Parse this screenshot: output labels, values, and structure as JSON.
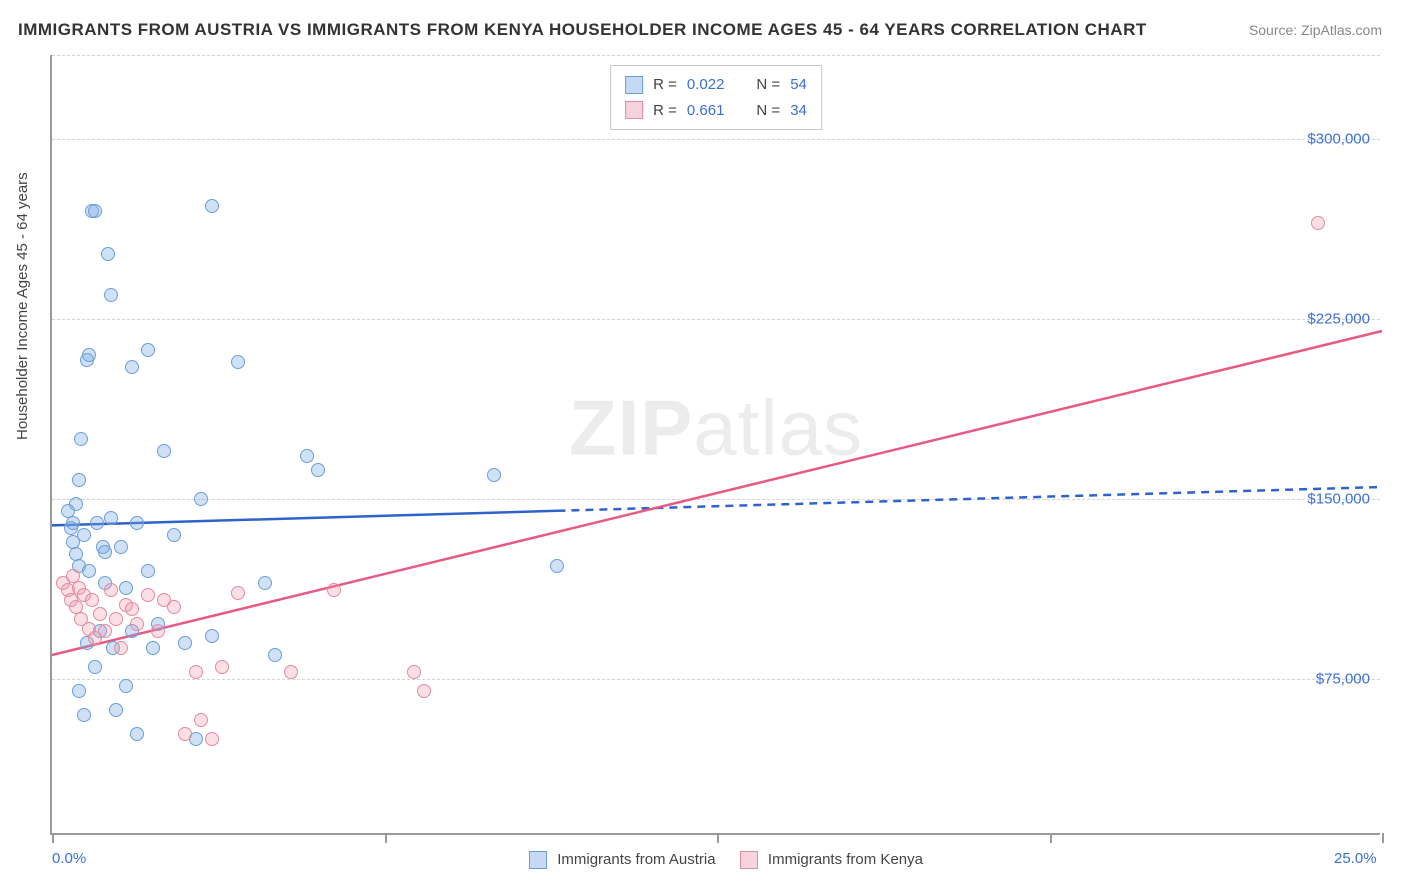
{
  "title": "IMMIGRANTS FROM AUSTRIA VS IMMIGRANTS FROM KENYA HOUSEHOLDER INCOME AGES 45 - 64 YEARS CORRELATION CHART",
  "source_label": "Source: ZipAtlas.com",
  "ylabel": "Householder Income Ages 45 - 64 years",
  "watermark": "ZIPatlas",
  "chart": {
    "type": "scatter",
    "xlim": [
      0,
      25
    ],
    "ylim": [
      10000,
      335000
    ],
    "x_unit": "%",
    "y_unit": "$",
    "xtick_labels": [
      "0.0%",
      "25.0%"
    ],
    "xtick_pos": [
      0,
      25
    ],
    "ytick_labels": [
      "$75,000",
      "$150,000",
      "$225,000",
      "$300,000"
    ],
    "ytick_pos": [
      75000,
      150000,
      225000,
      300000
    ],
    "grid_y_pos": [
      75000,
      150000,
      225000,
      300000,
      335000
    ],
    "xtick_mark_pos": [
      0,
      6.25,
      12.5,
      18.75,
      25
    ],
    "background_color": "#ffffff",
    "grid_color": "#d4d4d4",
    "axis_color": "#9a9a9a",
    "label_color": "#3b6fd6",
    "series": [
      {
        "name": "Immigrants from Austria",
        "color_fill": "rgba(120,170,230,0.35)",
        "color_stroke": "#6a9ed8",
        "class": "blue",
        "swatch_class": "blue-sw",
        "legend_swatch_bg": "#c5daf2",
        "R": "0.022",
        "N": "54",
        "trend": {
          "x1": 0,
          "y1": 139000,
          "x2": 25,
          "y2": 155000,
          "solid_until_x": 9.5,
          "stroke": "#2f63c9",
          "width": 2.5
        },
        "points": [
          [
            0.3,
            145000
          ],
          [
            0.35,
            138000
          ],
          [
            0.4,
            132000
          ],
          [
            0.4,
            140000
          ],
          [
            0.45,
            127000
          ],
          [
            0.45,
            148000
          ],
          [
            0.5,
            122000
          ],
          [
            0.5,
            158000
          ],
          [
            0.5,
            70000
          ],
          [
            0.55,
            175000
          ],
          [
            0.6,
            60000
          ],
          [
            0.6,
            135000
          ],
          [
            0.65,
            208000
          ],
          [
            0.65,
            90000
          ],
          [
            0.7,
            210000
          ],
          [
            0.7,
            120000
          ],
          [
            0.75,
            270000
          ],
          [
            0.8,
            270000
          ],
          [
            0.8,
            80000
          ],
          [
            0.85,
            140000
          ],
          [
            0.9,
            95000
          ],
          [
            0.95,
            130000
          ],
          [
            1.0,
            128000
          ],
          [
            1.0,
            115000
          ],
          [
            1.05,
            252000
          ],
          [
            1.1,
            235000
          ],
          [
            1.1,
            142000
          ],
          [
            1.15,
            88000
          ],
          [
            1.2,
            62000
          ],
          [
            1.3,
            130000
          ],
          [
            1.4,
            113000
          ],
          [
            1.4,
            72000
          ],
          [
            1.5,
            205000
          ],
          [
            1.5,
            95000
          ],
          [
            1.6,
            140000
          ],
          [
            1.6,
            52000
          ],
          [
            1.8,
            120000
          ],
          [
            1.8,
            212000
          ],
          [
            1.9,
            88000
          ],
          [
            2.0,
            98000
          ],
          [
            2.1,
            170000
          ],
          [
            2.3,
            135000
          ],
          [
            2.5,
            90000
          ],
          [
            2.7,
            50000
          ],
          [
            2.8,
            150000
          ],
          [
            3.0,
            93000
          ],
          [
            3.0,
            272000
          ],
          [
            3.5,
            207000
          ],
          [
            4.0,
            115000
          ],
          [
            4.2,
            85000
          ],
          [
            4.8,
            168000
          ],
          [
            5.0,
            162000
          ],
          [
            8.3,
            160000
          ],
          [
            9.5,
            122000
          ]
        ]
      },
      {
        "name": "Immigrants from Kenya",
        "color_fill": "rgba(240,150,170,0.30)",
        "color_stroke": "#e38aa0",
        "class": "pink",
        "swatch_class": "pink-sw",
        "legend_swatch_bg": "#f7d4dd",
        "R": "0.661",
        "N": "34",
        "trend": {
          "x1": 0,
          "y1": 85000,
          "x2": 25,
          "y2": 220000,
          "solid_until_x": 25,
          "stroke": "#e75a82",
          "width": 2.5
        },
        "points": [
          [
            0.2,
            115000
          ],
          [
            0.3,
            112000
          ],
          [
            0.35,
            108000
          ],
          [
            0.4,
            118000
          ],
          [
            0.45,
            105000
          ],
          [
            0.5,
            113000
          ],
          [
            0.55,
            100000
          ],
          [
            0.6,
            110000
          ],
          [
            0.7,
            96000
          ],
          [
            0.75,
            108000
          ],
          [
            0.8,
            92000
          ],
          [
            0.9,
            102000
          ],
          [
            1.0,
            95000
          ],
          [
            1.1,
            112000
          ],
          [
            1.2,
            100000
          ],
          [
            1.3,
            88000
          ],
          [
            1.4,
            106000
          ],
          [
            1.5,
            104000
          ],
          [
            1.6,
            98000
          ],
          [
            1.8,
            110000
          ],
          [
            2.0,
            95000
          ],
          [
            2.1,
            108000
          ],
          [
            2.3,
            105000
          ],
          [
            2.5,
            52000
          ],
          [
            2.7,
            78000
          ],
          [
            2.8,
            58000
          ],
          [
            3.0,
            50000
          ],
          [
            3.2,
            80000
          ],
          [
            3.5,
            111000
          ],
          [
            4.5,
            78000
          ],
          [
            5.3,
            112000
          ],
          [
            6.8,
            78000
          ],
          [
            7.0,
            70000
          ],
          [
            23.8,
            265000
          ]
        ]
      }
    ]
  },
  "legend_top": {
    "r_label": "R =",
    "n_label": "N ="
  },
  "legend_bottom": {
    "items": [
      "Immigrants from Austria",
      "Immigrants from Kenya"
    ]
  }
}
